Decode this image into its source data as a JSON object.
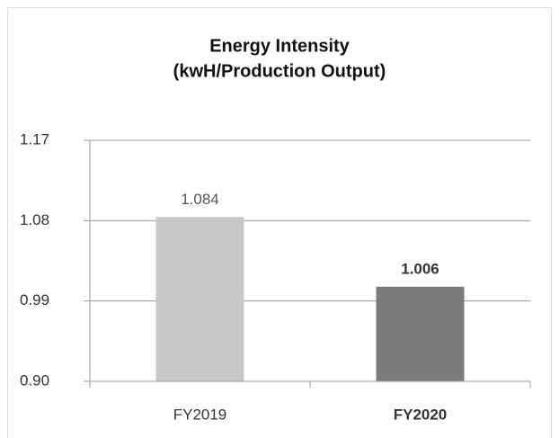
{
  "chart_data": {
    "type": "bar",
    "title": [
      "Energy Intensity",
      "(kwH/Production Output)"
    ],
    "categories": [
      "FY2019",
      "FY2020"
    ],
    "values": [
      1.084,
      1.006
    ],
    "colors": [
      "#c8c8c8",
      "#7b7b7b"
    ],
    "ylim": [
      0.9,
      1.17
    ],
    "yticks": [
      {
        "value": 0.9,
        "label": "0.90"
      },
      0.99,
      1.08,
      1.17
    ],
    "grid": true
  }
}
